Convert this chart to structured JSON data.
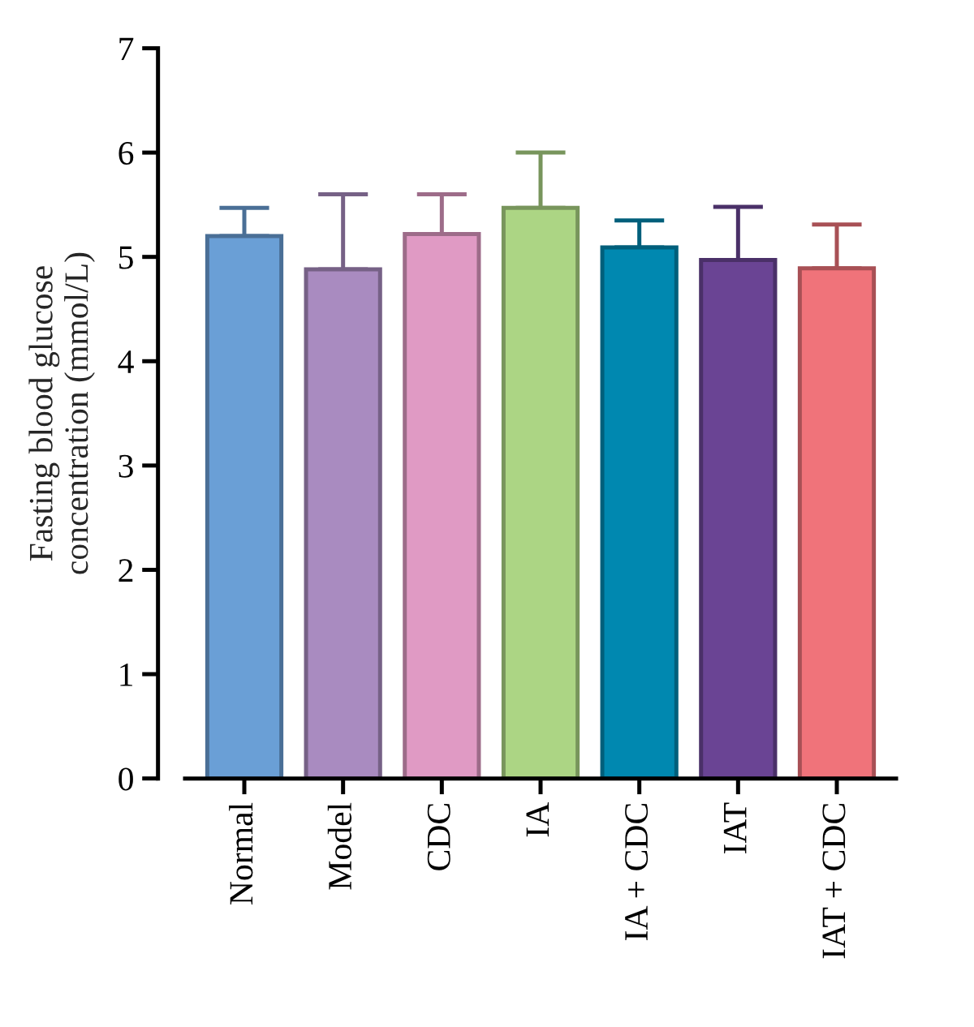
{
  "chart_data": {
    "type": "bar",
    "ylabel": "Fasting blood glucose\nconcentration (mmol/L)",
    "categories": [
      "Normal",
      "Model",
      "CDC",
      "IA",
      "IA + CDC",
      "IAT",
      "IAT + CDC"
    ],
    "values": [
      5.2,
      4.88,
      5.22,
      5.47,
      5.09,
      4.97,
      4.89
    ],
    "errors": [
      [
        5.2,
        5.47
      ],
      [
        4.88,
        5.6
      ],
      [
        5.22,
        5.6
      ],
      [
        5.47,
        6.0
      ],
      [
        5.09,
        5.35
      ],
      [
        4.97,
        5.48
      ],
      [
        4.89,
        5.31
      ]
    ],
    "colors": [
      "#6a9fd6",
      "#a98bc0",
      "#e09ac4",
      "#acd584",
      "#0088b0",
      "#6a4494",
      "#f0737a"
    ],
    "ylim": [
      0,
      7
    ],
    "yticks": [
      0,
      1,
      2,
      3,
      4,
      5,
      6,
      7
    ],
    "grid": false,
    "legend": false
  }
}
